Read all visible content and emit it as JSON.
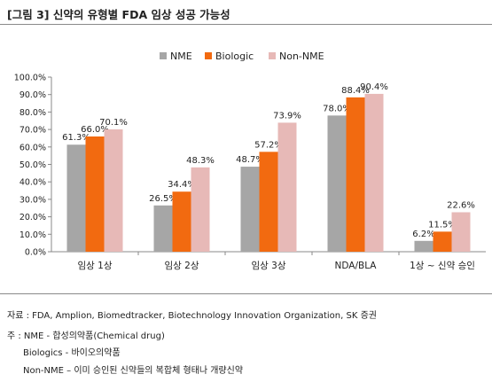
{
  "title": "[그림 3]  신약의 유형별 FDA 임상 성공 가능성",
  "colors": {
    "nme": "#a6a6a6",
    "biologic": "#f26a10",
    "non_nme": "#e7b9b7",
    "axis": "#888888",
    "rule": "#8a8a8a"
  },
  "chart_data": {
    "type": "bar",
    "categories": [
      "임상 1상",
      "임상 2상",
      "임상 3상",
      "NDA/BLA",
      "1상 ~ 신약 승인"
    ],
    "series": [
      {
        "name": "NME",
        "values": [
          61.3,
          26.5,
          48.7,
          78.0,
          6.2
        ],
        "labels": [
          "61.3%",
          "26.5%",
          "48.7%",
          "78.0%",
          "6.2%"
        ]
      },
      {
        "name": "Biologic",
        "values": [
          66.0,
          34.4,
          57.2,
          88.4,
          11.5
        ],
        "labels": [
          "66.0%",
          "34.4%",
          "57.2%",
          "88.4%",
          "11.5%"
        ]
      },
      {
        "name": "Non-NME",
        "values": [
          70.1,
          48.3,
          73.9,
          90.4,
          22.6
        ],
        "labels": [
          "70.1%",
          "48.3%",
          "73.9%",
          "90.4%",
          "22.6%"
        ]
      }
    ],
    "ylim": [
      0,
      100
    ],
    "yticks": [
      "0.0%",
      "10.0%",
      "20.0%",
      "30.0%",
      "40.0%",
      "50.0%",
      "60.0%",
      "70.0%",
      "80.0%",
      "90.0%",
      "100.0%"
    ],
    "legend": "top-center",
    "grid": false,
    "xlabel": "",
    "ylabel": ""
  },
  "notes": {
    "source": "자료 : FDA, Amplion, Biomedtracker, Biotechnology Innovation Organization, SK 증권",
    "note_prefix": "주 : NME - 합성의약품(Chemical drug)",
    "biologics": "Biologics - 바이오의약품",
    "non_nme": "Non-NME – 이미 승인된 신약들의 복합체 형태나 개량신약"
  }
}
